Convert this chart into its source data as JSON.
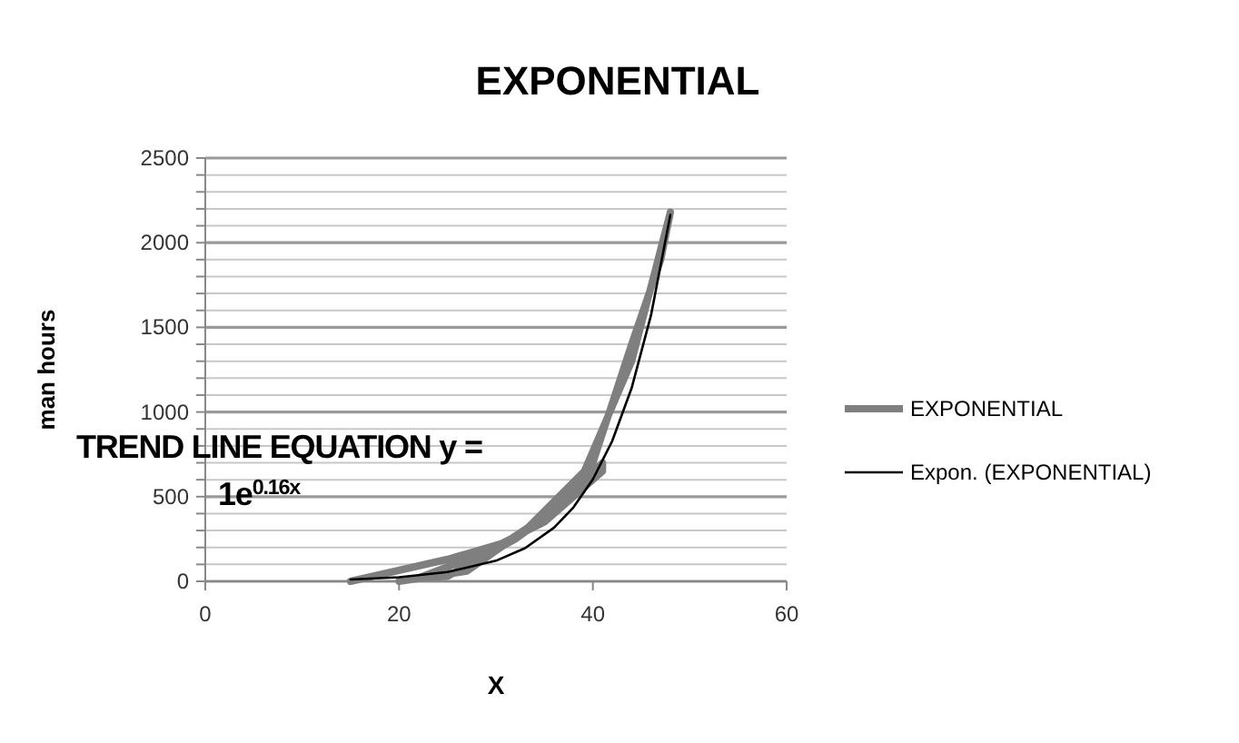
{
  "chart_data": {
    "type": "line",
    "title": "EXPONENTIAL",
    "xlabel": "X",
    "ylabel": "man hours",
    "xlim": [
      0,
      60
    ],
    "xticks": [
      0,
      20,
      40,
      60
    ],
    "ylim": [
      0,
      2500
    ],
    "yticks": [
      0,
      {
        "value": 100,
        "label": null
      },
      {
        "value": 200,
        "label": null
      },
      {
        "value": 300,
        "label": null
      },
      {
        "value": 400,
        "label": null
      },
      500,
      {
        "value": 600,
        "label": null
      },
      {
        "value": 700,
        "label": null
      },
      {
        "value": 800,
        "label": null
      },
      {
        "value": 900,
        "label": null
      },
      1000,
      {
        "value": 1100,
        "label": null
      },
      {
        "value": 1200,
        "label": null
      },
      {
        "value": 1300,
        "label": null
      },
      {
        "value": 1400,
        "label": null
      },
      1500,
      {
        "value": 1600,
        "label": null
      },
      {
        "value": 1700,
        "label": null
      },
      {
        "value": 1800,
        "label": null
      },
      {
        "value": 1900,
        "label": null
      },
      2000,
      {
        "value": 2100,
        "label": null
      },
      {
        "value": 2200,
        "label": null
      },
      {
        "value": 2300,
        "label": null
      },
      {
        "value": 2400,
        "label": null
      },
      2500
    ],
    "grid": "y",
    "legend": "right",
    "marker": "none",
    "series": [
      {
        "name": "EXPONENTIAL",
        "color": "#7f7f7f",
        "x": [
          15,
          25,
          31,
          36,
          41,
          41,
          35,
          28,
          22,
          25,
          32,
          38,
          44,
          48,
          47,
          44,
          40,
          33,
          27,
          20
        ],
        "values": [
          0,
          130,
          230,
          420,
          700,
          650,
          350,
          150,
          20,
          30,
          250,
          500,
          1300,
          2180,
          1900,
          1400,
          700,
          300,
          60,
          0
        ]
      },
      {
        "name": "Expon. (EXPONENTIAL)",
        "color": "#000000",
        "x": [
          15,
          20,
          25,
          30,
          33,
          36,
          38,
          40,
          42,
          44,
          46,
          48
        ],
        "values": [
          11,
          24.5,
          54.6,
          121.5,
          196,
          317,
          437,
          602,
          829,
          1141,
          1571,
          2164
        ]
      }
    ],
    "annotations": [
      "TREND LINE EQUATION y =",
      "1e$^{0.16x}$"
    ]
  }
}
